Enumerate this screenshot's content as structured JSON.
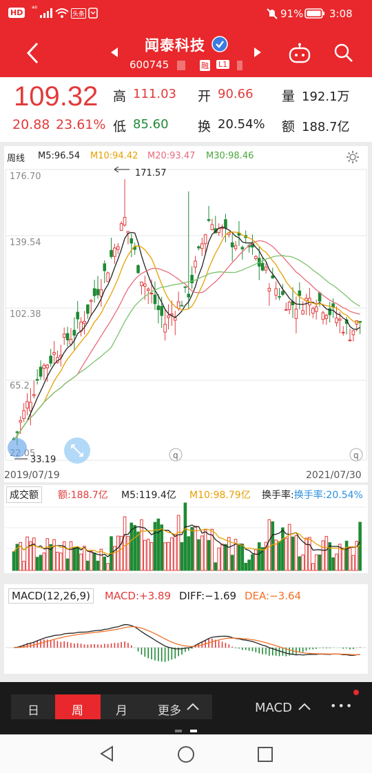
{
  "status": {
    "left_badges": [
      "HD",
      "⁴⁶",
      "头条"
    ],
    "battery": "91%",
    "time": "3:08"
  },
  "header": {
    "title": "闻泰科技",
    "code": "600745",
    "tag1": "融",
    "tag2": "L1"
  },
  "quote": {
    "price": "109.32",
    "change": "20.88",
    "change_pct": "23.61%",
    "high_label": "高",
    "high": "111.03",
    "open_label": "开",
    "open": "90.66",
    "volume_label": "量",
    "volume": "192.1万",
    "low_label": "低",
    "low": "85.60",
    "turnover_label": "换",
    "turnover": "20.54%",
    "amount_label": "额",
    "amount": "188.7亿"
  },
  "kline": {
    "period": "周线",
    "ma5": "M5:96.54",
    "ma10": "M10:94.42",
    "ma20": "M20:93.47",
    "ma30": "M30:98.46",
    "y1": "176.70",
    "y2": "139.54",
    "y3": "102.38",
    "y4": "65.2",
    "y5": "22.05",
    "max_label": "171.57",
    "min_label": "33.19",
    "date_start": "2019/07/19",
    "date_end": "2021/07/30"
  },
  "volume": {
    "title": "成交额",
    "amount": "额:188.7亿",
    "m5": "M5:119.4亿",
    "m10": "M10:98.79亿",
    "turnover": "换手率:20.54%"
  },
  "macd": {
    "title": "MACD(12,26,9)",
    "macd": "MACD:+3.89",
    "diff": "DIFF:−1.69",
    "dea": "DEA:−3.64"
  },
  "tabs": {
    "day": "日",
    "week": "周",
    "month": "月",
    "more": "更多",
    "indicator": "MACD",
    "dots": "•••"
  },
  "colors": {
    "up": "#e23a3a",
    "down": "#1e8a35",
    "header": "#e8282c",
    "ma5": "#222222",
    "ma10": "#e6a000",
    "ma20": "#e86a7a",
    "ma30": "#7ac36a"
  }
}
